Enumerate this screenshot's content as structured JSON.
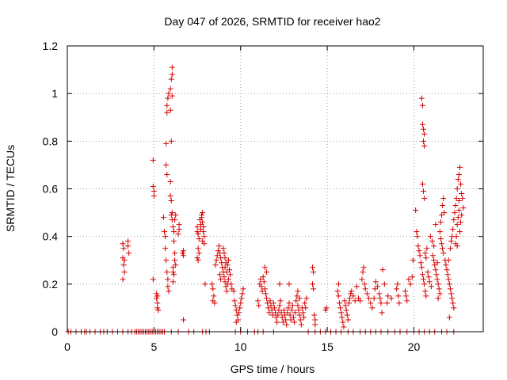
{
  "chart_data": {
    "type": "scatter",
    "title": "Day 047 of 2026, SRMTID for receiver hao2",
    "xlabel": "GPS time / hours",
    "ylabel": "SRMTID / TECUs",
    "xlim": [
      0,
      24.0
    ],
    "ylim": [
      0,
      1.2
    ],
    "x_ticks": [
      0,
      5,
      10,
      15,
      20
    ],
    "x_tick_labels": [
      "0",
      "5",
      "10",
      "15",
      "20"
    ],
    "y_ticks": [
      0,
      0.2,
      0.4,
      0.6,
      0.8,
      1,
      1.2
    ],
    "y_tick_labels": [
      "0",
      "0.2",
      "0.4",
      "0.6",
      "0.8",
      "1",
      "1.2"
    ],
    "grid": true,
    "legend": "none",
    "marker": "plus",
    "color": "#d40000",
    "points": [
      [
        0.05,
        0
      ],
      [
        0.2,
        0
      ],
      [
        0.5,
        0
      ],
      [
        0.8,
        0
      ],
      [
        1.0,
        0
      ],
      [
        1.1,
        0
      ],
      [
        1.3,
        0
      ],
      [
        1.6,
        0
      ],
      [
        1.9,
        0
      ],
      [
        2.1,
        0
      ],
      [
        2.3,
        0
      ],
      [
        2.6,
        0
      ],
      [
        2.9,
        0
      ],
      [
        3.2,
        0
      ],
      [
        3.5,
        0
      ],
      [
        3.7,
        0
      ],
      [
        3.9,
        0
      ],
      [
        4.0,
        0
      ],
      [
        4.1,
        0
      ],
      [
        4.2,
        0
      ],
      [
        4.3,
        0
      ],
      [
        4.4,
        0
      ],
      [
        4.5,
        0
      ],
      [
        4.6,
        0
      ],
      [
        4.7,
        0
      ],
      [
        4.8,
        0
      ],
      [
        4.9,
        0
      ],
      [
        5.0,
        0
      ],
      [
        5.1,
        0
      ],
      [
        5.2,
        0
      ],
      [
        5.3,
        0
      ],
      [
        5.4,
        0
      ],
      [
        5.5,
        0
      ],
      [
        5.6,
        0
      ],
      [
        6.0,
        0
      ],
      [
        6.4,
        0
      ],
      [
        7.0,
        0
      ],
      [
        7.3,
        0
      ],
      [
        7.8,
        0
      ],
      [
        8.0,
        0
      ],
      [
        8.2,
        0
      ],
      [
        9.7,
        0
      ],
      [
        10.0,
        0
      ],
      [
        10.4,
        0
      ],
      [
        10.8,
        0
      ],
      [
        11.0,
        0
      ],
      [
        11.3,
        0
      ],
      [
        11.9,
        0
      ],
      [
        13.9,
        0
      ],
      [
        14.3,
        0
      ],
      [
        14.6,
        0
      ],
      [
        14.9,
        0
      ],
      [
        15.2,
        0
      ],
      [
        15.5,
        0
      ],
      [
        15.8,
        0
      ],
      [
        16.2,
        0
      ],
      [
        16.5,
        0
      ],
      [
        16.9,
        0
      ],
      [
        17.2,
        0
      ],
      [
        17.5,
        0
      ],
      [
        17.8,
        0
      ],
      [
        18.1,
        0
      ],
      [
        18.5,
        0
      ],
      [
        18.9,
        0
      ],
      [
        19.2,
        0
      ],
      [
        19.6,
        0
      ],
      [
        20.0,
        0
      ],
      [
        20.3,
        0
      ],
      [
        20.6,
        0
      ],
      [
        20.9,
        0
      ],
      [
        21.2,
        0
      ],
      [
        21.6,
        0
      ],
      [
        21.9,
        0
      ],
      [
        22.3,
        0
      ],
      [
        3.2,
        0.37
      ],
      [
        3.25,
        0.35
      ],
      [
        3.2,
        0.31
      ],
      [
        3.25,
        0.28
      ],
      [
        3.3,
        0.25
      ],
      [
        3.2,
        0.22
      ],
      [
        3.3,
        0.3
      ],
      [
        3.5,
        0.38
      ],
      [
        3.5,
        0.36
      ],
      [
        3.55,
        0.33
      ],
      [
        4.95,
        0.72
      ],
      [
        4.95,
        0.61
      ],
      [
        5.0,
        0.59
      ],
      [
        5.0,
        0.57
      ],
      [
        4.95,
        0.22
      ],
      [
        5.15,
        0.16
      ],
      [
        5.15,
        0.14
      ],
      [
        5.2,
        0.12
      ],
      [
        5.2,
        0.1
      ],
      [
        5.25,
        0.09
      ],
      [
        5.2,
        0.15
      ],
      [
        5.55,
        0.48
      ],
      [
        5.6,
        0.42
      ],
      [
        5.65,
        0.4
      ],
      [
        5.65,
        0.35
      ],
      [
        5.7,
        0.3
      ],
      [
        5.75,
        0.25
      ],
      [
        5.8,
        0.22
      ],
      [
        5.8,
        0.19
      ],
      [
        5.85,
        0.17
      ],
      [
        5.7,
        0.79
      ],
      [
        5.7,
        0.7
      ],
      [
        5.75,
        0.66
      ],
      [
        5.75,
        0.92
      ],
      [
        5.75,
        0.95
      ],
      [
        5.8,
        0.98
      ],
      [
        5.85,
        1.0
      ],
      [
        5.95,
        0.93
      ],
      [
        5.95,
        1.02
      ],
      [
        6.0,
        1.06
      ],
      [
        6.05,
        1.08
      ],
      [
        6.05,
        1.11
      ],
      [
        6.05,
        0.99
      ],
      [
        6.0,
        0.8
      ],
      [
        5.95,
        0.63
      ],
      [
        5.95,
        0.57
      ],
      [
        6.0,
        0.55
      ],
      [
        6.05,
        0.5
      ],
      [
        6.05,
        0.47
      ],
      [
        6.1,
        0.44
      ],
      [
        6.15,
        0.42
      ],
      [
        6.15,
        0.38
      ],
      [
        6.2,
        0.33
      ],
      [
        6.2,
        0.3
      ],
      [
        6.25,
        0.28
      ],
      [
        6.1,
        0.25
      ],
      [
        6.1,
        0.21
      ],
      [
        6.0,
        0.49
      ],
      [
        6.1,
        0.27
      ],
      [
        6.15,
        0.24
      ],
      [
        6.2,
        0.47
      ],
      [
        6.25,
        0.49
      ],
      [
        6.4,
        0.41
      ],
      [
        6.45,
        0.45
      ],
      [
        6.45,
        0.43
      ],
      [
        6.65,
        0.33
      ],
      [
        6.7,
        0.34
      ],
      [
        6.7,
        0.32
      ],
      [
        6.7,
        0.05
      ],
      [
        7.5,
        0.44
      ],
      [
        7.5,
        0.42
      ],
      [
        7.55,
        0.41
      ],
      [
        7.6,
        0.39
      ],
      [
        7.55,
        0.35
      ],
      [
        7.6,
        0.33
      ],
      [
        7.5,
        0.31
      ],
      [
        7.55,
        0.3
      ],
      [
        7.65,
        0.47
      ],
      [
        7.7,
        0.45
      ],
      [
        7.7,
        0.43
      ],
      [
        7.75,
        0.49
      ],
      [
        7.75,
        0.48
      ],
      [
        7.8,
        0.5
      ],
      [
        7.8,
        0.46
      ],
      [
        7.85,
        0.44
      ],
      [
        7.85,
        0.42
      ],
      [
        7.9,
        0.4
      ],
      [
        7.8,
        0.38
      ],
      [
        7.9,
        0.37
      ],
      [
        7.95,
        0.2
      ],
      [
        8.35,
        0.2
      ],
      [
        8.4,
        0.18
      ],
      [
        8.45,
        0.15
      ],
      [
        8.4,
        0.13
      ],
      [
        8.5,
        0.12
      ],
      [
        8.55,
        0.28
      ],
      [
        8.6,
        0.3
      ],
      [
        8.65,
        0.32
      ],
      [
        8.7,
        0.34
      ],
      [
        8.75,
        0.36
      ],
      [
        8.8,
        0.33
      ],
      [
        8.85,
        0.31
      ],
      [
        8.9,
        0.29
      ],
      [
        8.95,
        0.27
      ],
      [
        9.0,
        0.25
      ],
      [
        9.05,
        0.23
      ],
      [
        9.1,
        0.21
      ],
      [
        9.15,
        0.19
      ],
      [
        9.2,
        0.17
      ],
      [
        9.25,
        0.2
      ],
      [
        9.3,
        0.22
      ],
      [
        9.0,
        0.35
      ],
      [
        9.05,
        0.33
      ],
      [
        9.1,
        0.31
      ],
      [
        9.15,
        0.29
      ],
      [
        8.8,
        0.24
      ],
      [
        8.85,
        0.22
      ],
      [
        9.1,
        0.27
      ],
      [
        9.2,
        0.25
      ],
      [
        9.25,
        0.28
      ],
      [
        9.3,
        0.3
      ],
      [
        9.35,
        0.26
      ],
      [
        9.4,
        0.24
      ],
      [
        9.45,
        0.2
      ],
      [
        9.5,
        0.18
      ],
      [
        9.6,
        0.17
      ],
      [
        9.65,
        0.13
      ],
      [
        9.7,
        0.11
      ],
      [
        9.75,
        0.09
      ],
      [
        9.8,
        0.07
      ],
      [
        9.85,
        0.05
      ],
      [
        9.9,
        0.08
      ],
      [
        9.95,
        0.1
      ],
      [
        10.0,
        0.12
      ],
      [
        10.05,
        0.14
      ],
      [
        10.1,
        0.16
      ],
      [
        10.15,
        0.18
      ],
      [
        9.75,
        0.04
      ],
      [
        11.0,
        0.13
      ],
      [
        11.05,
        0.11
      ],
      [
        11.1,
        0.2
      ],
      [
        11.15,
        0.22
      ],
      [
        11.2,
        0.19
      ],
      [
        11.25,
        0.17
      ],
      [
        11.3,
        0.23
      ],
      [
        11.35,
        0.21
      ],
      [
        11.4,
        0.18
      ],
      [
        11.45,
        0.16
      ],
      [
        11.5,
        0.14
      ],
      [
        11.55,
        0.12
      ],
      [
        11.6,
        0.1
      ],
      [
        11.65,
        0.08
      ],
      [
        11.7,
        0.13
      ],
      [
        11.75,
        0.11
      ],
      [
        11.8,
        0.09
      ],
      [
        11.85,
        0.07
      ],
      [
        11.9,
        0.12
      ],
      [
        11.95,
        0.1
      ],
      [
        12.0,
        0.08
      ],
      [
        12.05,
        0.06
      ],
      [
        12.1,
        0.04
      ],
      [
        12.15,
        0.07
      ],
      [
        12.2,
        0.09
      ],
      [
        12.25,
        0.11
      ],
      [
        12.3,
        0.13
      ],
      [
        12.35,
        0.08
      ],
      [
        12.4,
        0.06
      ],
      [
        12.45,
        0.04
      ],
      [
        12.5,
        0.09
      ],
      [
        12.55,
        0.07
      ],
      [
        12.6,
        0.05
      ],
      [
        12.65,
        0.03
      ],
      [
        12.7,
        0.08
      ],
      [
        12.75,
        0.1
      ],
      [
        12.8,
        0.12
      ],
      [
        12.85,
        0.07
      ],
      [
        12.9,
        0.05
      ],
      [
        12.95,
        0.09
      ],
      [
        13.0,
        0.11
      ],
      [
        13.05,
        0.06
      ],
      [
        13.1,
        0.04
      ],
      [
        13.15,
        0.08
      ],
      [
        13.2,
        0.13
      ],
      [
        13.25,
        0.15
      ],
      [
        13.3,
        0.11
      ],
      [
        13.35,
        0.09
      ],
      [
        13.4,
        0.07
      ],
      [
        13.45,
        0.05
      ],
      [
        13.5,
        0.03
      ],
      [
        13.55,
        0.1
      ],
      [
        13.6,
        0.08
      ],
      [
        13.65,
        0.06
      ],
      [
        13.7,
        0.12
      ],
      [
        13.75,
        0.1
      ],
      [
        13.8,
        0.14
      ],
      [
        13.4,
        0.14
      ],
      [
        13.3,
        0.17
      ],
      [
        12.8,
        0.2
      ],
      [
        12.25,
        0.2
      ],
      [
        11.5,
        0.25
      ],
      [
        11.4,
        0.27
      ],
      [
        14.15,
        0.27
      ],
      [
        14.2,
        0.25
      ],
      [
        14.15,
        0.2
      ],
      [
        14.2,
        0.18
      ],
      [
        14.25,
        0.07
      ],
      [
        14.3,
        0.05
      ],
      [
        14.3,
        0.03
      ],
      [
        14.9,
        0.09
      ],
      [
        14.95,
        0.1
      ],
      [
        15.6,
        0.17
      ],
      [
        15.65,
        0.15
      ],
      [
        15.7,
        0.12
      ],
      [
        15.75,
        0.1
      ],
      [
        15.8,
        0.08
      ],
      [
        15.85,
        0.06
      ],
      [
        15.9,
        0.04
      ],
      [
        15.95,
        0.02
      ],
      [
        15.65,
        0.2
      ],
      [
        16.0,
        0.13
      ],
      [
        16.05,
        0.11
      ],
      [
        16.1,
        0.09
      ],
      [
        16.15,
        0.07
      ],
      [
        16.2,
        0.05
      ],
      [
        16.25,
        0.12
      ],
      [
        16.3,
        0.14
      ],
      [
        16.35,
        0.16
      ],
      [
        16.4,
        0.17
      ],
      [
        16.5,
        0.15
      ],
      [
        16.6,
        0.13
      ],
      [
        16.7,
        0.19
      ],
      [
        16.8,
        0.14
      ],
      [
        16.9,
        0.13
      ],
      [
        17.0,
        0.22
      ],
      [
        17.05,
        0.25
      ],
      [
        17.1,
        0.27
      ],
      [
        17.15,
        0.2
      ],
      [
        17.2,
        0.18
      ],
      [
        17.3,
        0.16
      ],
      [
        17.4,
        0.14
      ],
      [
        17.5,
        0.12
      ],
      [
        17.6,
        0.1
      ],
      [
        17.7,
        0.14
      ],
      [
        17.75,
        0.18
      ],
      [
        17.8,
        0.21
      ],
      [
        17.9,
        0.19
      ],
      [
        18.0,
        0.16
      ],
      [
        18.05,
        0.14
      ],
      [
        18.1,
        0.12
      ],
      [
        18.15,
        0.08
      ],
      [
        18.2,
        0.26
      ],
      [
        18.3,
        0.2
      ],
      [
        18.45,
        0.12
      ],
      [
        18.5,
        0.15
      ],
      [
        18.7,
        0.14
      ],
      [
        19.0,
        0.18
      ],
      [
        19.05,
        0.2
      ],
      [
        19.1,
        0.15
      ],
      [
        19.15,
        0.12
      ],
      [
        19.5,
        0.17
      ],
      [
        19.55,
        0.15
      ],
      [
        19.6,
        0.13
      ],
      [
        19.7,
        0.22
      ],
      [
        19.8,
        0.2
      ],
      [
        19.9,
        0.23
      ],
      [
        19.95,
        0.3
      ],
      [
        20.1,
        0.51
      ],
      [
        20.15,
        0.42
      ],
      [
        20.2,
        0.4
      ],
      [
        20.25,
        0.36
      ],
      [
        20.3,
        0.34
      ],
      [
        20.35,
        0.32
      ],
      [
        20.4,
        0.29
      ],
      [
        20.45,
        0.27
      ],
      [
        20.5,
        0.24
      ],
      [
        20.55,
        0.22
      ],
      [
        20.6,
        0.2
      ],
      [
        20.65,
        0.17
      ],
      [
        20.7,
        0.15
      ],
      [
        20.45,
        0.98
      ],
      [
        20.5,
        0.95
      ],
      [
        20.5,
        0.87
      ],
      [
        20.55,
        0.85
      ],
      [
        20.6,
        0.83
      ],
      [
        20.55,
        0.8
      ],
      [
        20.6,
        0.78
      ],
      [
        20.5,
        0.62
      ],
      [
        20.55,
        0.59
      ],
      [
        20.6,
        0.56
      ],
      [
        20.65,
        0.33
      ],
      [
        20.7,
        0.31
      ],
      [
        20.75,
        0.35
      ],
      [
        20.8,
        0.25
      ],
      [
        20.85,
        0.23
      ],
      [
        20.9,
        0.21
      ],
      [
        21.0,
        0.19
      ],
      [
        21.05,
        0.38
      ],
      [
        21.1,
        0.32
      ],
      [
        21.15,
        0.3
      ],
      [
        21.2,
        0.28
      ],
      [
        21.25,
        0.26
      ],
      [
        21.3,
        0.24
      ],
      [
        21.35,
        0.22
      ],
      [
        21.4,
        0.2
      ],
      [
        21.45,
        0.18
      ],
      [
        21.5,
        0.16
      ],
      [
        21.4,
        0.14
      ],
      [
        21.5,
        0.42
      ],
      [
        21.55,
        0.39
      ],
      [
        21.6,
        0.37
      ],
      [
        21.65,
        0.35
      ],
      [
        21.7,
        0.33
      ],
      [
        21.55,
        0.46
      ],
      [
        21.6,
        0.49
      ],
      [
        21.65,
        0.53
      ],
      [
        21.7,
        0.56
      ],
      [
        21.75,
        0.5
      ],
      [
        21.8,
        0.3
      ],
      [
        21.85,
        0.28
      ],
      [
        21.9,
        0.26
      ],
      [
        21.95,
        0.24
      ],
      [
        22.0,
        0.22
      ],
      [
        22.05,
        0.2
      ],
      [
        22.1,
        0.18
      ],
      [
        22.15,
        0.16
      ],
      [
        22.2,
        0.14
      ],
      [
        22.25,
        0.12
      ],
      [
        22.3,
        0.1
      ],
      [
        22.05,
        0.06
      ],
      [
        22.0,
        0.3
      ],
      [
        22.1,
        0.35
      ],
      [
        22.15,
        0.38
      ],
      [
        22.2,
        0.4
      ],
      [
        22.25,
        0.43
      ],
      [
        22.3,
        0.47
      ],
      [
        22.35,
        0.5
      ],
      [
        22.4,
        0.53
      ],
      [
        22.45,
        0.56
      ],
      [
        22.5,
        0.6
      ],
      [
        22.55,
        0.64
      ],
      [
        22.6,
        0.66
      ],
      [
        22.65,
        0.69
      ],
      [
        22.7,
        0.62
      ],
      [
        22.75,
        0.58
      ],
      [
        22.8,
        0.56
      ],
      [
        22.85,
        0.52
      ],
      [
        22.4,
        0.37
      ],
      [
        22.45,
        0.4
      ],
      [
        22.5,
        0.45
      ],
      [
        22.55,
        0.48
      ],
      [
        22.6,
        0.51
      ],
      [
        22.65,
        0.42
      ],
      [
        22.7,
        0.46
      ],
      [
        22.75,
        0.49
      ],
      [
        22.5,
        0.36
      ],
      [
        22.6,
        0.55
      ],
      [
        21.25,
        0.45
      ],
      [
        20.95,
        0.4
      ],
      [
        21.15,
        0.36
      ],
      [
        21.35,
        0.29
      ]
    ]
  }
}
